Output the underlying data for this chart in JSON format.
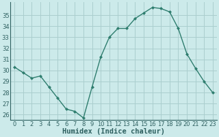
{
  "x": [
    0,
    1,
    2,
    3,
    4,
    5,
    6,
    7,
    8,
    9,
    10,
    11,
    12,
    13,
    14,
    15,
    16,
    17,
    18,
    19,
    20,
    21,
    22,
    23
  ],
  "y": [
    30.3,
    29.8,
    29.3,
    29.5,
    28.5,
    27.5,
    26.5,
    26.3,
    25.7,
    28.5,
    31.2,
    33.0,
    33.8,
    33.8,
    34.7,
    35.2,
    35.7,
    35.6,
    35.3,
    33.8,
    31.5,
    30.2,
    29.0,
    28.0
  ],
  "line_color": "#2e7d6e",
  "marker": "D",
  "marker_size": 2,
  "bg_color": "#cceaea",
  "grid_color": "#aacece",
  "xlabel": "Humidex (Indice chaleur)",
  "ylabel_ticks": [
    26,
    27,
    28,
    29,
    30,
    31,
    32,
    33,
    34,
    35
  ],
  "ylim": [
    25.5,
    36.2
  ],
  "xlim": [
    -0.5,
    23.5
  ],
  "xticks": [
    0,
    1,
    2,
    3,
    4,
    5,
    6,
    7,
    8,
    9,
    10,
    11,
    12,
    13,
    14,
    15,
    16,
    17,
    18,
    19,
    20,
    21,
    22,
    23
  ],
  "tick_fontsize": 6.0,
  "xlabel_fontsize": 7.5,
  "line_width": 1.0
}
